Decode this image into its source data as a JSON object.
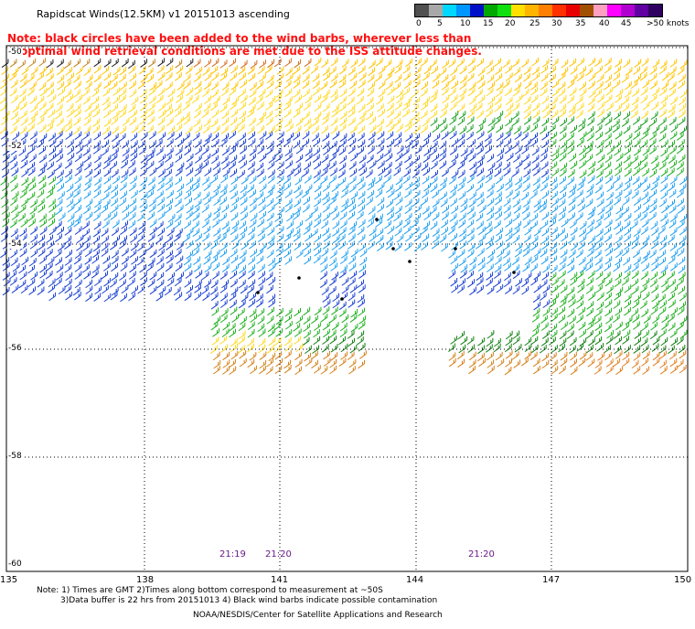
{
  "header": {
    "title": "Rapidscat Winds(12.5KM) v1 20151013 ascending",
    "note_line1": "Note: black circles have been added to the wind barbs, wherever less than",
    "note_line2": "optimal wind retrieval conditions are met due to the ISS attitude changes."
  },
  "legend": {
    "labels": [
      "0",
      "5",
      "10",
      "15",
      "20",
      "25",
      "30",
      "35",
      "40",
      "45",
      ">50 knots"
    ],
    "colors": [
      "#505050",
      "#a8a8a8",
      "#00d8ff",
      "#0096ff",
      "#0010c8",
      "#00a800",
      "#10e010",
      "#ffe000",
      "#ffb400",
      "#ff8000",
      "#ff3000",
      "#e80000",
      "#a05000",
      "#ffa0c0",
      "#ff00ff",
      "#b000d0",
      "#6000a0",
      "#300060"
    ]
  },
  "map": {
    "lat_labels": [
      "-50",
      "-52",
      "-54",
      "-56",
      "-58",
      "-60"
    ],
    "lon_labels": [
      "135",
      "138",
      "141",
      "144",
      "147",
      "150"
    ],
    "time_labels": [
      "21:19",
      "21:20",
      "21:20"
    ]
  },
  "footer": {
    "line1": "Note: 1) Times are GMT 2)Times along bottom correspond to measurement at ~50S",
    "line2": "3)Data buffer is 22 hrs from 20151013 4) Black wind barbs indicate possible contamination",
    "line3": "NOAA/NESDIS/Center for Satellite Applications and Research"
  }
}
